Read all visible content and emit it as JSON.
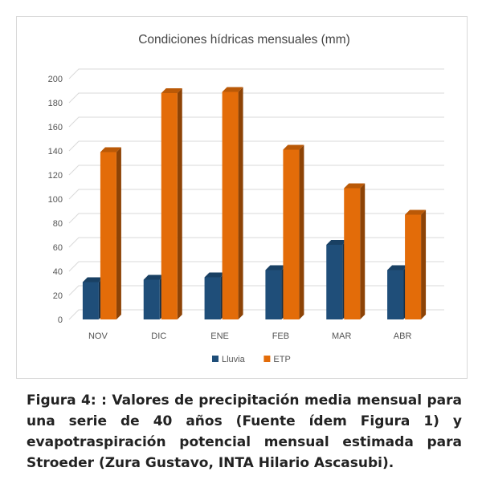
{
  "chart_data": {
    "type": "bar",
    "title": "Condiciones hídricas mensuales (mm)",
    "categories": [
      "NOV",
      "DIC",
      "ENE",
      "FEB",
      "MAR",
      "ABR"
    ],
    "series": [
      {
        "name": "Lluvia",
        "color": "#1f4e79",
        "values": [
          31,
          33,
          35,
          41,
          62,
          41
        ]
      },
      {
        "name": "ETP",
        "color": "#e36c09",
        "values": [
          139,
          188,
          189,
          141,
          109,
          87
        ]
      }
    ],
    "ylim": [
      0,
      200
    ],
    "yticks": [
      0,
      20,
      40,
      60,
      80,
      100,
      120,
      140,
      160,
      180,
      200
    ],
    "grid": true,
    "legend_position": "bottom",
    "style": "3d-column"
  },
  "caption": "Figura 4: : Valores de precipitación media mensual para una serie de 40 años (Fuente ídem Figura 1) y evapotraspiración potencial mensual estimada para Stroeder (Zura Gustavo, INTA Hilario Ascasubi)."
}
